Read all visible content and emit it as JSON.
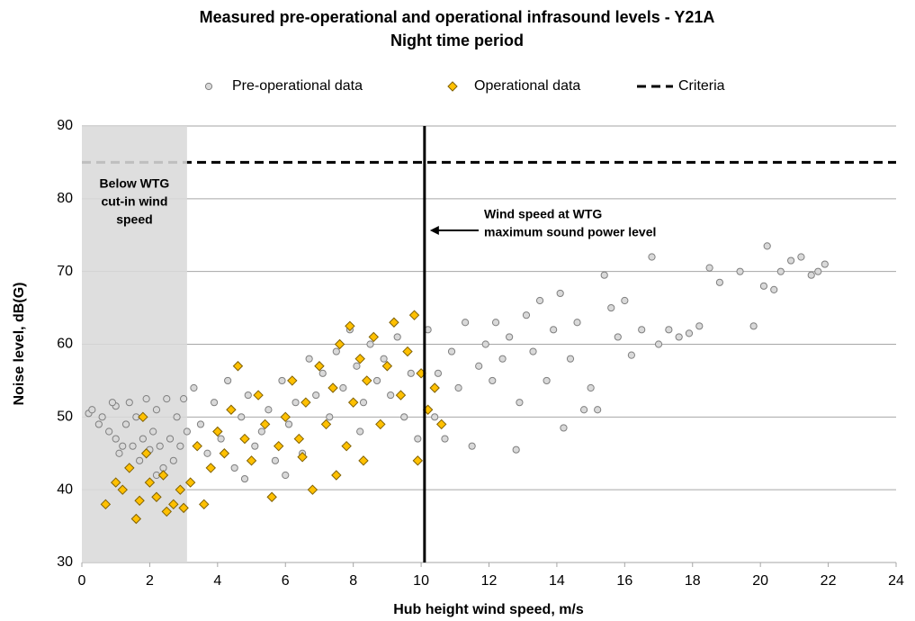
{
  "chart_data": {
    "type": "scatter",
    "title": "Measured pre-operational and operational infrasound levels - Y21A",
    "subtitle": "Night time period",
    "x_label": "Hub height wind speed, m/s",
    "y_label": "Noise level, dB(G)",
    "xlim": [
      0,
      24
    ],
    "xticks": [
      0,
      2,
      4,
      6,
      8,
      10,
      12,
      14,
      16,
      18,
      20,
      22,
      24
    ],
    "ylim": [
      30,
      90
    ],
    "yticks": [
      30,
      40,
      50,
      60,
      70,
      80,
      90
    ],
    "grid": true,
    "legend": "top",
    "series": [
      {
        "name": "Pre-operational data",
        "marker": "circle",
        "color": "#d9d9d9",
        "edge_color": "#7f7f7f",
        "x": [
          0.2,
          0.3,
          0.5,
          0.6,
          0.8,
          1,
          1,
          1.2,
          1.3,
          1.4,
          1.5,
          1.6,
          1.7,
          1.8,
          1.9,
          2,
          2.1,
          2.2,
          2.3,
          2.4,
          2.5,
          2.6,
          2.7,
          2.8,
          2.9,
          3,
          3.1,
          1.1,
          2.2,
          0.9,
          3.3,
          3.5,
          3.7,
          3.9,
          4.1,
          4.3,
          4.5,
          4.7,
          4.9,
          5.1,
          5.3,
          5.5,
          5.7,
          5.9,
          6.1,
          6.3,
          6.5,
          6.7,
          6.9,
          7.1,
          7.3,
          7.5,
          7.7,
          7.9,
          8.1,
          8.3,
          8.5,
          8.7,
          8.9,
          9.1,
          9.3,
          9.5,
          9.7,
          9.9,
          6,
          4.8,
          8.2,
          10.2,
          10.4,
          10.5,
          10.7,
          10.9,
          11.1,
          11.3,
          11.5,
          11.7,
          11.9,
          12.1,
          12.2,
          12.4,
          12.6,
          12.8,
          12.9,
          13.1,
          13.3,
          13.5,
          13.7,
          13.9,
          14.1,
          14.2,
          14.4,
          14.6,
          14.8,
          15,
          15.2,
          15.4,
          15.6,
          15.8,
          16,
          16.2,
          16.5,
          16.8,
          17,
          17.3,
          17.6,
          17.9,
          18.2,
          18.5,
          18.8,
          19.4,
          19.8,
          20.2,
          20.4,
          20.6,
          20.9,
          21.2,
          21.5,
          21.7,
          21.9,
          20.1
        ],
        "values": [
          50.5,
          51,
          49,
          50,
          48,
          47,
          51.5,
          46,
          49,
          52,
          46,
          50,
          44,
          47,
          52.5,
          45.5,
          48,
          51,
          46,
          43,
          52.5,
          47,
          44,
          50,
          46,
          52.5,
          48,
          45,
          42,
          52,
          54,
          49,
          45,
          52,
          47,
          55,
          43,
          50,
          53,
          46,
          48,
          51,
          44,
          55,
          49,
          52,
          45,
          58,
          53,
          56,
          50,
          59,
          54,
          62,
          57,
          52,
          60,
          55,
          58,
          53,
          61,
          50,
          56,
          47,
          42,
          41.5,
          48,
          62,
          50,
          56,
          47,
          59,
          54,
          63,
          46,
          57,
          60,
          55,
          63,
          58,
          61,
          45.5,
          52,
          64,
          59,
          66,
          55,
          62,
          67,
          48.5,
          58,
          63,
          51,
          54,
          51,
          69.5,
          65,
          61,
          66,
          58.5,
          62,
          72,
          60,
          62,
          61,
          61.5,
          62.5,
          70.5,
          68.5,
          70,
          62.5,
          73.5,
          67.5,
          70,
          71.5,
          72,
          69.5,
          70,
          71,
          68
        ]
      },
      {
        "name": "Operational data",
        "marker": "diamond",
        "color": "#ffc000",
        "edge_color": "#7f6000",
        "x": [
          0.7,
          1,
          1.2,
          1.4,
          1.6,
          1.7,
          1.9,
          2,
          2.2,
          2.4,
          2.5,
          2.7,
          2.9,
          3,
          3.2,
          1.8,
          3.4,
          3.6,
          3.8,
          4,
          4.2,
          4.4,
          4.6,
          4.8,
          5,
          5.2,
          5.4,
          5.6,
          5.8,
          6,
          6.2,
          6.4,
          6.6,
          6.8,
          7,
          7.2,
          7.4,
          7.6,
          7.8,
          7.9,
          8,
          8.2,
          8.4,
          8.6,
          8.8,
          9,
          9.2,
          9.4,
          9.6,
          9.8,
          10,
          10.2,
          10.4,
          10.6,
          7.5,
          8.3,
          6.5,
          9.9
        ],
        "values": [
          38,
          41,
          40,
          43,
          36,
          38.5,
          45,
          41,
          39,
          42,
          37,
          38,
          40,
          37.5,
          41,
          50,
          46,
          38,
          43,
          48,
          45,
          51,
          57,
          47,
          44,
          53,
          49,
          39,
          46,
          50,
          55,
          47,
          52,
          40,
          57,
          49,
          54,
          60,
          46,
          62.5,
          52,
          58,
          55,
          61,
          49,
          57,
          63,
          53,
          59,
          64,
          56,
          51,
          54,
          49,
          42,
          44,
          44.5,
          44
        ]
      }
    ],
    "criteria": {
      "name": "Criteria",
      "value": 85,
      "color": "#000000"
    },
    "cut_in_region": {
      "xlim": [
        0,
        3.1
      ],
      "color": "#d9d9d9",
      "label": [
        "Below WTG",
        "cut-in wind",
        "speed"
      ]
    },
    "max_power_line": {
      "value": 10.1,
      "color": "#000000",
      "label": [
        "Wind speed at WTG",
        "maximum sound power level"
      ]
    }
  }
}
